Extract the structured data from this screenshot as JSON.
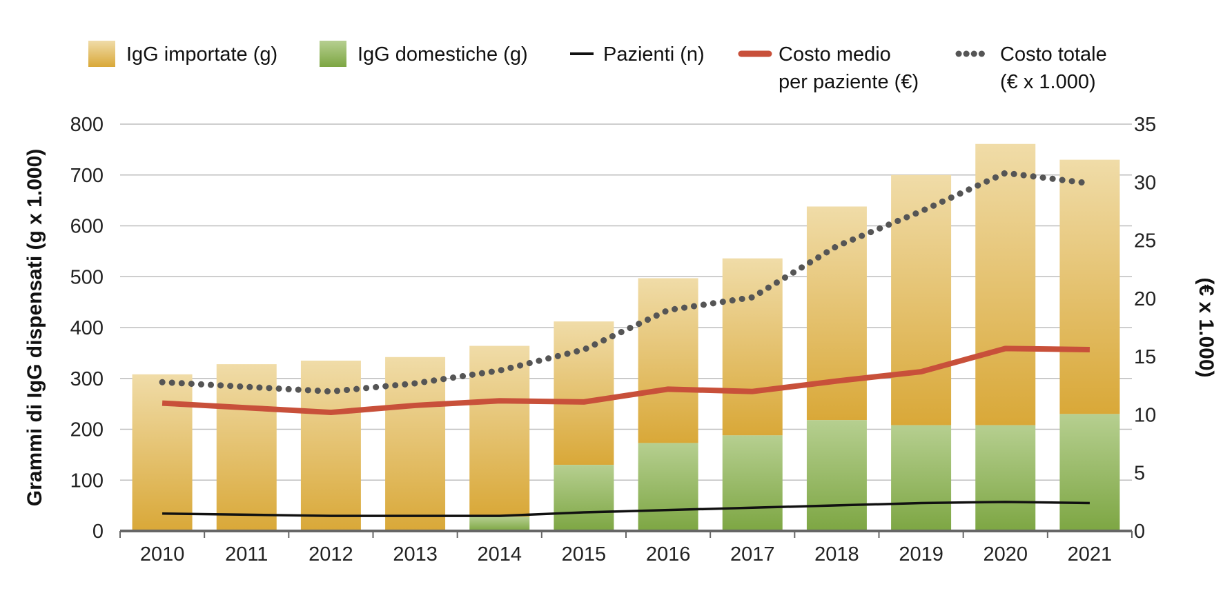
{
  "chart_data": {
    "type": "bar",
    "categories": [
      "2010",
      "2011",
      "2012",
      "2013",
      "2014",
      "2015",
      "2016",
      "2017",
      "2018",
      "2019",
      "2020",
      "2021"
    ],
    "stacked": true,
    "series": [
      {
        "name": "IgG importate (g)",
        "kind": "bar",
        "axis": "left",
        "color_top": "#f0dca8",
        "color_bottom": "#d9a838",
        "values": [
          308,
          328,
          335,
          342,
          336,
          282,
          324,
          348,
          420,
          492,
          553,
          500
        ]
      },
      {
        "name": "IgG domestiche (g)",
        "kind": "bar",
        "axis": "left",
        "color_top": "#b6cf90",
        "color_bottom": "#7da643",
        "values": [
          0,
          0,
          0,
          0,
          28,
          130,
          173,
          188,
          218,
          208,
          208,
          230
        ]
      },
      {
        "name": "Pazienti (n)",
        "kind": "line",
        "axis": "right",
        "color": "#111111",
        "style": "solid-thin",
        "values": [
          1.5,
          1.4,
          1.3,
          1.3,
          1.3,
          1.6,
          1.8,
          2.0,
          2.2,
          2.4,
          2.5,
          2.4
        ]
      },
      {
        "name": "Costo medio per paziente (€)",
        "kind": "line",
        "axis": "right",
        "color": "#c8503a",
        "style": "solid-thick",
        "values": [
          11.0,
          10.6,
          10.2,
          10.8,
          11.2,
          11.1,
          12.2,
          12.0,
          12.9,
          13.7,
          15.7,
          15.6
        ]
      },
      {
        "name": "Costo totale (€ x 1.000)",
        "kind": "line",
        "axis": "right",
        "color": "#555555",
        "style": "dotted",
        "values": [
          12.8,
          12.4,
          12.0,
          12.7,
          13.8,
          15.6,
          19.0,
          20.1,
          24.5,
          27.5,
          30.8,
          29.9
        ]
      }
    ],
    "ylim": [
      0,
      800
    ],
    "y_ticks": [
      "0",
      "100",
      "200",
      "300",
      "400",
      "500",
      "600",
      "700",
      "800"
    ],
    "y2lim": [
      0,
      35
    ],
    "y2_ticks": [
      "0",
      "5",
      "10",
      "15",
      "20",
      "25",
      "30",
      "35"
    ],
    "ylabel": "Grammi di IgG dispensati (g x 1.000)",
    "y2label": "(€ x 1.000)",
    "xlabel": "",
    "grid": true,
    "legend_position": "top",
    "legend": [
      {
        "lines": [
          "IgG importate (g)"
        ],
        "swatch": "bar-imported"
      },
      {
        "lines": [
          "IgG domestiche (g)"
        ],
        "swatch": "bar-domestic"
      },
      {
        "lines": [
          "Pazienti (n)"
        ],
        "swatch": "line-thin"
      },
      {
        "lines": [
          "Costo medio",
          "per paziente (€)"
        ],
        "swatch": "line-thick"
      },
      {
        "lines": [
          "Costo totale",
          "(€ x 1.000)"
        ],
        "swatch": "line-dotted"
      }
    ]
  }
}
